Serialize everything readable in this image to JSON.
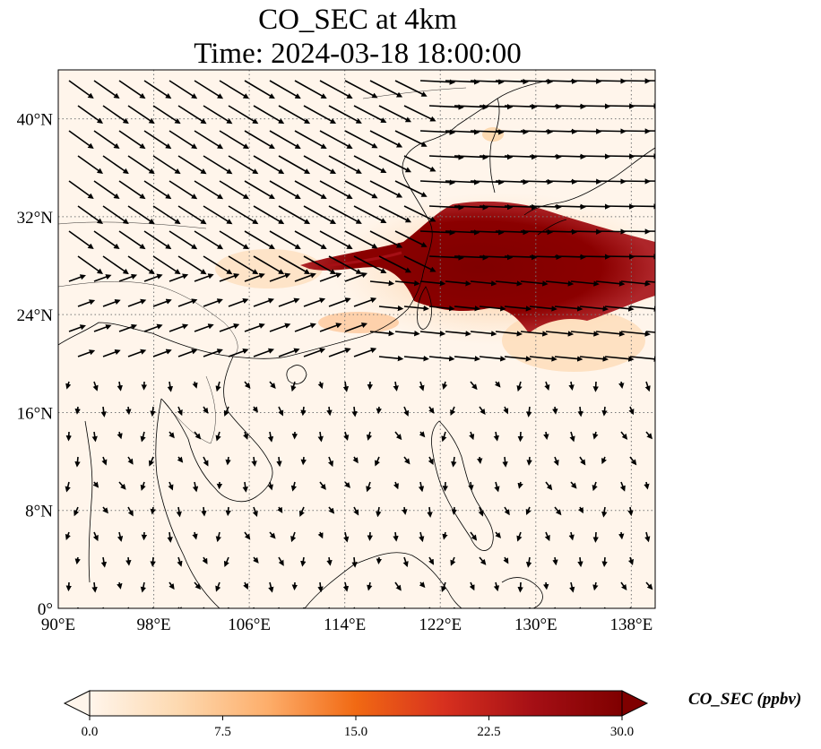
{
  "title": {
    "line1": "CO_SEC at 4km",
    "line2": "Time: 2024-03-18 18:00:00"
  },
  "map": {
    "lon_range": [
      90,
      140
    ],
    "lat_range": [
      0,
      44
    ],
    "lon_ticks": [
      "90°E",
      "98°E",
      "106°E",
      "114°E",
      "122°E",
      "130°E",
      "138°E"
    ],
    "lat_ticks": [
      "0°",
      "8°N",
      "16°N",
      "24°N",
      "32°N",
      "40°N"
    ],
    "gridlines": true,
    "field_variable": "CO_SEC",
    "wind_vectors": true
  },
  "colorbar": {
    "label": "CO_SEC (ppbv)",
    "ticks": [
      "0.0",
      "7.5",
      "15.0",
      "22.5",
      "30.0"
    ],
    "range": [
      0,
      30
    ],
    "extend": "both",
    "colors": [
      "#fff5eb",
      "#fdd9b0",
      "#fdae6b",
      "#f16913",
      "#d7301f",
      "#a50f15",
      "#7f0000"
    ]
  }
}
